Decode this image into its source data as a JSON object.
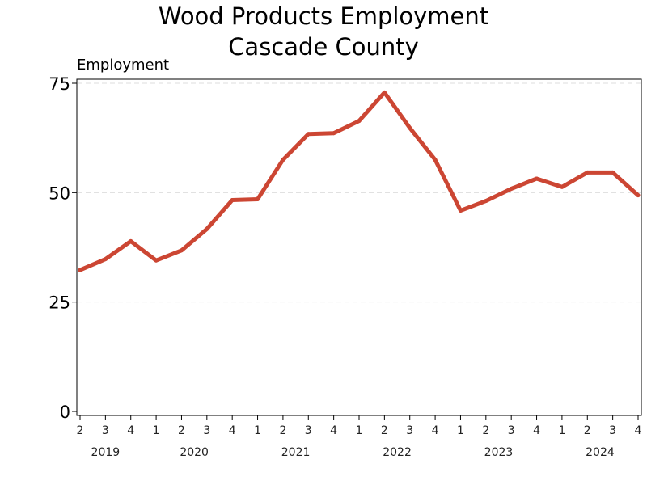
{
  "chart_data": {
    "type": "line",
    "title": [
      "Wood Products Employment",
      "Cascade County"
    ],
    "ylabel": "Employment",
    "xlabel": "",
    "ylim": [
      0,
      75
    ],
    "yticks": [
      0,
      25,
      50,
      75
    ],
    "grid": true,
    "colors": {
      "line": "#cc4633",
      "grid": "#dddddd"
    },
    "x": [
      "2019 Q2",
      "2019 Q3",
      "2019 Q4",
      "2020 Q1",
      "2020 Q2",
      "2020 Q3",
      "2020 Q4",
      "2021 Q1",
      "2021 Q2",
      "2021 Q3",
      "2021 Q4",
      "2022 Q1",
      "2022 Q2",
      "2022 Q3",
      "2022 Q4",
      "2023 Q1",
      "2023 Q2",
      "2023 Q3",
      "2023 Q4",
      "2024 Q1",
      "2024 Q2",
      "2024 Q3",
      "2024 Q4"
    ],
    "quarter_labels": [
      "2",
      "3",
      "4",
      "1",
      "2",
      "3",
      "4",
      "1",
      "2",
      "3",
      "4",
      "1",
      "2",
      "3",
      "4",
      "1",
      "2",
      "3",
      "4",
      "1",
      "2",
      "3",
      "4"
    ],
    "year_labels": [
      {
        "label": "2019",
        "start": 0,
        "end": 2
      },
      {
        "label": "2020",
        "start": 3,
        "end": 6
      },
      {
        "label": "2021",
        "start": 7,
        "end": 10
      },
      {
        "label": "2022",
        "start": 11,
        "end": 14
      },
      {
        "label": "2023",
        "start": 15,
        "end": 18
      },
      {
        "label": "2024",
        "start": 19,
        "end": 22
      }
    ],
    "series": [
      {
        "values": [
          32.3,
          34.8,
          38.9,
          34.5,
          36.8,
          41.7,
          48.3,
          48.5,
          57.5,
          63.4,
          63.6,
          66.4,
          72.9,
          64.8,
          57.5,
          45.9,
          48.1,
          50.9,
          53.2,
          51.3,
          54.6,
          54.6,
          49.4
        ]
      }
    ]
  }
}
